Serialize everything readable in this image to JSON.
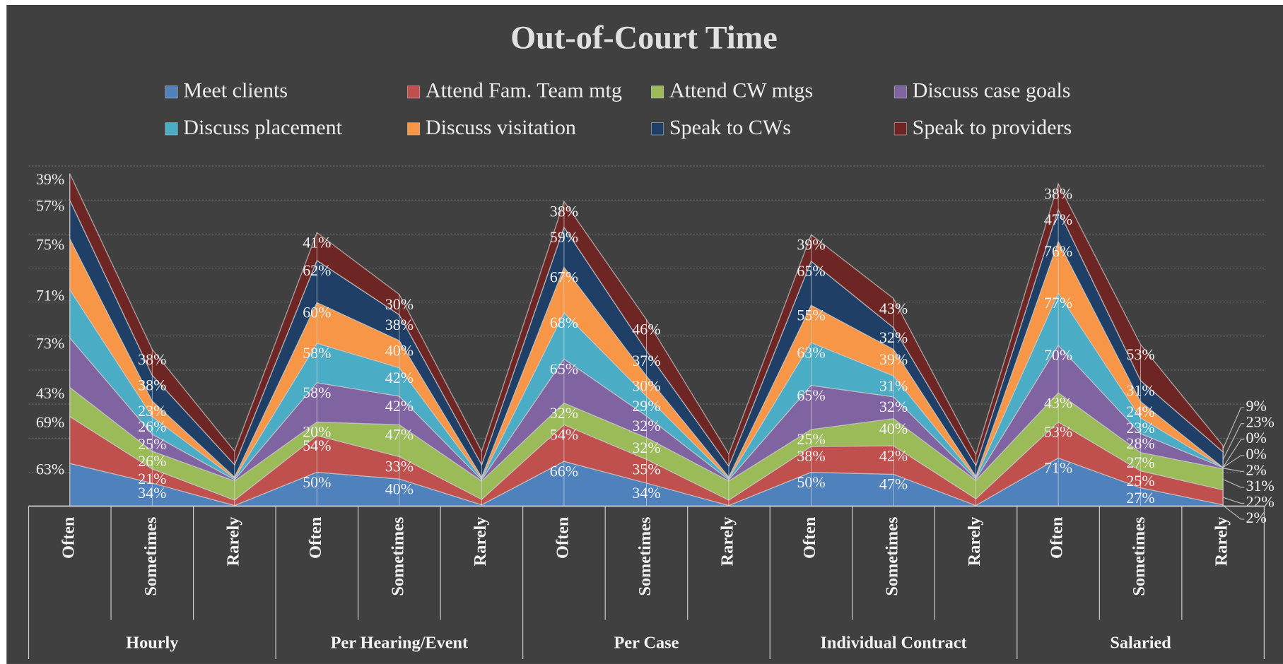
{
  "chart_data": {
    "type": "stacked_area",
    "title": "Out-of-Court Time",
    "groups": [
      {
        "name": "Hourly",
        "categories": [
          "Often",
          "Sometimes",
          "Rarely"
        ]
      },
      {
        "name": "Per Hearing/Event",
        "categories": [
          "Often",
          "Sometimes",
          "Rarely"
        ]
      },
      {
        "name": "Per Case",
        "categories": [
          "Often",
          "Sometimes",
          "Rarely"
        ]
      },
      {
        "name": "Individual Contract",
        "categories": [
          "Often",
          "Sometimes",
          "Rarely"
        ]
      },
      {
        "name": "Salaried",
        "categories": [
          "Often",
          "Sometimes",
          "Rarely"
        ]
      }
    ],
    "series": [
      {
        "name": "Meet clients",
        "color": "#4f81bd",
        "values": [
          63,
          34,
          1,
          50,
          40,
          2,
          66,
          34,
          1,
          50,
          47,
          1,
          71,
          27,
          2
        ],
        "value_labels": [
          "63%",
          "34%",
          null,
          "50%",
          "40%",
          null,
          "66%",
          "34%",
          null,
          "50%",
          "47%",
          null,
          "71%",
          "27%",
          "2%"
        ]
      },
      {
        "name": "Attend Fam. Team mtg",
        "color": "#c0504d",
        "values": [
          69,
          21,
          8,
          54,
          33,
          8,
          54,
          35,
          8,
          38,
          42,
          10,
          53,
          25,
          22
        ],
        "value_labels": [
          "69%",
          "21%",
          null,
          "54%",
          "33%",
          null,
          "54%",
          "35%",
          null,
          "38%",
          "42%",
          null,
          "53%",
          "25%",
          "22%"
        ]
      },
      {
        "name": "Attend CW mtgs",
        "color": "#9bbb59",
        "values": [
          43,
          26,
          28,
          20,
          47,
          27,
          32,
          32,
          28,
          25,
          40,
          27,
          43,
          27,
          31
        ],
        "value_labels": [
          "43%",
          "26%",
          null,
          "20%",
          "47%",
          null,
          "32%",
          "32%",
          null,
          "25%",
          "40%",
          null,
          "43%",
          "27%",
          "31%"
        ]
      },
      {
        "name": "Discuss case goals",
        "color": "#8064a2",
        "values": [
          73,
          25,
          2,
          58,
          42,
          2,
          65,
          32,
          2,
          65,
          32,
          2,
          70,
          28,
          2
        ],
        "value_labels": [
          "73%",
          "25%",
          null,
          "58%",
          "42%",
          null,
          "65%",
          "32%",
          null,
          "65%",
          "32%",
          null,
          "70%",
          "28%",
          "2%"
        ]
      },
      {
        "name": "Discuss placement",
        "color": "#4bacc6",
        "values": [
          71,
          26,
          2,
          58,
          42,
          2,
          68,
          29,
          2,
          63,
          31,
          2,
          77,
          23,
          0
        ],
        "value_labels": [
          "71%",
          "26%",
          null,
          "58%",
          "42%",
          null,
          "68%",
          "29%",
          null,
          "63%",
          "31%",
          null,
          "77%",
          "23%",
          "0%"
        ]
      },
      {
        "name": "Discuss visitation",
        "color": "#f79646",
        "values": [
          75,
          23,
          2,
          60,
          40,
          2,
          67,
          30,
          2,
          55,
          39,
          2,
          76,
          24,
          0
        ],
        "value_labels": [
          "75%",
          "23%",
          null,
          "60%",
          "40%",
          null,
          "67%",
          "30%",
          null,
          "55%",
          "39%",
          null,
          "76%",
          "24%",
          "0%"
        ]
      },
      {
        "name": "Speak to CWs",
        "color": "#1f3f66",
        "values": [
          57,
          38,
          18,
          62,
          38,
          18,
          59,
          37,
          16,
          65,
          32,
          16,
          47,
          31,
          23
        ],
        "value_labels": [
          "57%",
          "38%",
          null,
          "62%",
          "38%",
          null,
          "59%",
          "37%",
          null,
          "65%",
          "32%",
          null,
          "47%",
          "31%",
          "23%"
        ]
      },
      {
        "name": "Speak to providers",
        "color": "#6e2624",
        "values": [
          39,
          38,
          20,
          41,
          30,
          20,
          38,
          46,
          18,
          39,
          43,
          16,
          38,
          53,
          9
        ],
        "value_labels": [
          "39%",
          "38%",
          null,
          "41%",
          "30%",
          null,
          "38%",
          "46%",
          null,
          "39%",
          "43%",
          null,
          "38%",
          "53%",
          "9%"
        ]
      }
    ]
  }
}
